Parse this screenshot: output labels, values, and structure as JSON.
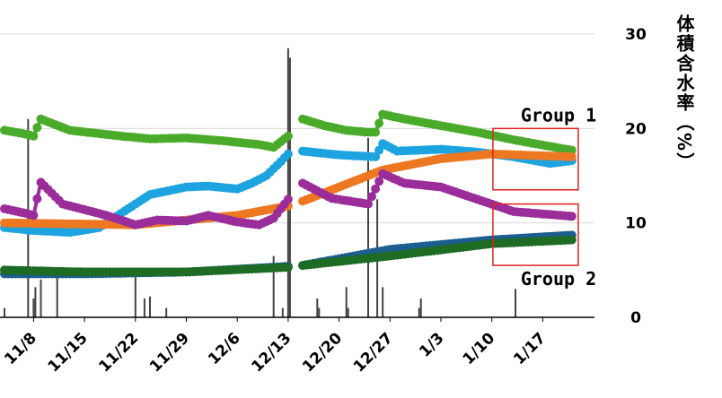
{
  "chart_data": {
    "type": "line",
    "ylabel": "体積含水率（%）",
    "ylim": [
      0,
      30
    ],
    "yticks": [
      0,
      10,
      20,
      30
    ],
    "x_range": [
      "2021-11-04",
      "2022-01-22"
    ],
    "xticks": [
      "11/8",
      "11/15",
      "11/22",
      "11/29",
      "12/6",
      "12/13",
      "12/20",
      "12/27",
      "1/3",
      "1/10",
      "1/17"
    ],
    "xtick_dates": [
      "2021-11-08",
      "2021-11-15",
      "2021-11-22",
      "2021-11-29",
      "2021-12-06",
      "2021-12-13",
      "2021-12-20",
      "2021-12-27",
      "2022-01-03",
      "2022-01-10",
      "2022-01-17"
    ],
    "grid": true,
    "colors": {
      "green_light": "#4aab2b",
      "blue": "#1ca3e0",
      "orange": "#ee7722",
      "purple": "#9b2d9b",
      "navy": "#1b5e8f",
      "green_dark": "#1e6b24",
      "bars": "#444444",
      "annotation_box": "#e02020"
    },
    "gap": [
      "2021-12-14",
      "2021-12-15"
    ],
    "series": [
      {
        "color": "#4aab2b",
        "x": [
          "2021-11-04",
          "2021-11-07",
          "2021-11-08",
          "2021-11-09",
          "2021-11-13",
          "2021-11-20",
          "2021-11-24",
          "2021-11-29",
          "2021-12-04",
          "2021-12-09",
          "2021-12-11",
          "2021-12-13",
          "2021-12-15",
          "2021-12-18",
          "2021-12-21",
          "2021-12-24",
          "2021-12-25",
          "2021-12-26",
          "2021-12-29",
          "2022-01-03",
          "2022-01-08",
          "2022-01-13",
          "2022-01-18",
          "2022-01-21"
        ],
        "y": [
          19.8,
          19.4,
          19.2,
          21.0,
          19.8,
          19.2,
          18.9,
          19.0,
          18.7,
          18.3,
          18.0,
          19.2,
          21.0,
          20.3,
          19.8,
          19.6,
          19.6,
          21.5,
          21.0,
          20.3,
          19.6,
          18.8,
          18.1,
          17.7
        ]
      },
      {
        "color": "#1ca3e0",
        "x": [
          "2021-11-04",
          "2021-11-08",
          "2021-11-13",
          "2021-11-17",
          "2021-11-21",
          "2021-11-24",
          "2021-11-29",
          "2021-12-02",
          "2021-12-06",
          "2021-12-08",
          "2021-12-10",
          "2021-12-12",
          "2021-12-13",
          "2021-12-15",
          "2021-12-20",
          "2021-12-25",
          "2021-12-26",
          "2021-12-28",
          "2022-01-03",
          "2022-01-08",
          "2022-01-13",
          "2022-01-18",
          "2022-01-21"
        ],
        "y": [
          9.5,
          9.2,
          9.0,
          9.5,
          11.5,
          13.0,
          13.8,
          13.9,
          13.6,
          14.2,
          15.0,
          16.5,
          17.3,
          17.6,
          17.2,
          17.0,
          18.4,
          17.6,
          17.8,
          17.5,
          17.0,
          16.3,
          16.6
        ]
      },
      {
        "color": "#ee7722",
        "x": [
          "2021-11-04",
          "2021-11-13",
          "2021-11-22",
          "2021-11-29",
          "2021-12-06",
          "2021-12-13",
          "2021-12-15",
          "2021-12-20",
          "2021-12-26",
          "2022-01-03",
          "2022-01-10",
          "2022-01-21"
        ],
        "y": [
          10.0,
          9.9,
          9.8,
          10.3,
          10.8,
          11.8,
          12.3,
          13.8,
          15.6,
          16.8,
          17.3,
          17.0
        ]
      },
      {
        "color": "#9b2d9b",
        "x": [
          "2021-11-04",
          "2021-11-07",
          "2021-11-08",
          "2021-11-09",
          "2021-11-12",
          "2021-11-18",
          "2021-11-22",
          "2021-11-25",
          "2021-11-29",
          "2021-12-02",
          "2021-12-06",
          "2021-12-09",
          "2021-12-11",
          "2021-12-13",
          "2021-12-15",
          "2021-12-19",
          "2021-12-24",
          "2021-12-26",
          "2021-12-29",
          "2022-01-03",
          "2022-01-08",
          "2022-01-13",
          "2022-01-21"
        ],
        "y": [
          11.5,
          11.0,
          10.8,
          14.3,
          12.0,
          10.8,
          9.8,
          10.3,
          10.2,
          10.8,
          10.1,
          9.8,
          10.5,
          12.5,
          14.2,
          12.6,
          12.0,
          15.2,
          14.2,
          13.8,
          12.5,
          11.2,
          10.7
        ]
      },
      {
        "color": "#1b5e8f",
        "x": [
          "2021-11-04",
          "2021-11-15",
          "2021-11-29",
          "2021-12-13",
          "2021-12-15",
          "2021-12-27",
          "2022-01-10",
          "2022-01-21"
        ],
        "y": [
          4.6,
          4.6,
          4.8,
          5.4,
          5.5,
          7.2,
          8.2,
          8.7
        ]
      },
      {
        "color": "#1e6b24",
        "x": [
          "2021-11-04",
          "2021-11-15",
          "2021-11-29",
          "2021-12-13",
          "2021-12-15",
          "2021-12-27",
          "2022-01-10",
          "2022-01-21"
        ],
        "y": [
          5.0,
          4.8,
          4.8,
          5.3,
          5.5,
          6.5,
          7.8,
          8.2
        ]
      }
    ],
    "bars": [
      {
        "x": "2021-11-04",
        "y": 1.0
      },
      {
        "x": "2021-11-07",
        "y": 21.0
      },
      {
        "x": "2021-11-08",
        "y": 2.0
      },
      {
        "x": "2021-11-08",
        "y": 3.2
      },
      {
        "x": "2021-11-09",
        "y": 4.0
      },
      {
        "x": "2021-11-11",
        "y": 4.6
      },
      {
        "x": "2021-11-22",
        "y": 4.3
      },
      {
        "x": "2021-11-23",
        "y": 2.0
      },
      {
        "x": "2021-11-24",
        "y": 2.2
      },
      {
        "x": "2021-11-26",
        "y": 1.0
      },
      {
        "x": "2021-12-11",
        "y": 6.5
      },
      {
        "x": "2021-12-12",
        "y": 1.0
      },
      {
        "x": "2021-12-13",
        "y": 28.5
      },
      {
        "x": "2021-12-13",
        "y": 27.5
      },
      {
        "x": "2021-12-17",
        "y": 2.0
      },
      {
        "x": "2021-12-17",
        "y": 1.0
      },
      {
        "x": "2021-12-21",
        "y": 3.2
      },
      {
        "x": "2021-12-21",
        "y": 1.0
      },
      {
        "x": "2021-12-24",
        "y": 19.0
      },
      {
        "x": "2021-12-25",
        "y": 12.5
      },
      {
        "x": "2021-12-26",
        "y": 3.2
      },
      {
        "x": "2021-12-31",
        "y": 2.0
      },
      {
        "x": "2021-12-31",
        "y": 1.0
      },
      {
        "x": "2022-01-13",
        "y": 3.0
      }
    ],
    "annotations": [
      {
        "label": "Group 1",
        "box_y": [
          13.5,
          20.0
        ]
      },
      {
        "label": "Group 2",
        "box_y": [
          5.5,
          12.0
        ]
      }
    ]
  }
}
